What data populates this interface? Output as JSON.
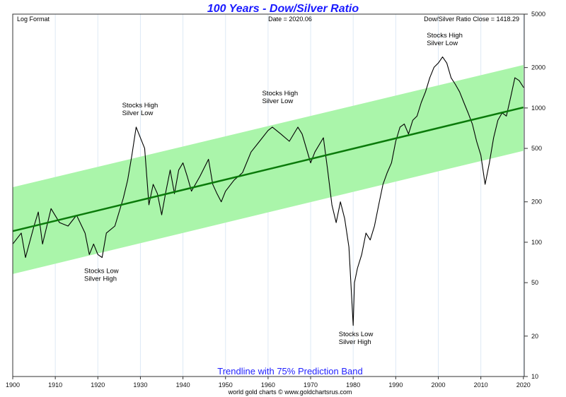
{
  "chart_data": {
    "type": "line",
    "title": "100 Years - Dow/Silver Ratio",
    "top_left_label": "Log Format",
    "date_label": "Date = 2020.06",
    "close_label": "Dow/Silver Ratio Close = 1418.29",
    "band_label": "Trendline with 75% Prediction Band",
    "footer": "world gold charts © www.goldchartsrus.com",
    "y_scale": "log",
    "xlim": [
      1900,
      2020.2
    ],
    "ylim": [
      10,
      5000
    ],
    "x_ticks": [
      1900,
      1910,
      1920,
      1930,
      1940,
      1950,
      1960,
      1970,
      1980,
      1990,
      2000,
      2010,
      2020
    ],
    "y_ticks": [
      5000,
      2000,
      1000,
      500,
      200,
      100,
      50,
      20,
      10
    ],
    "grid": "vertical",
    "colors": {
      "series": "#000000",
      "trend": "#0a7a0a",
      "band": "#aaf5aa",
      "title": "#1a1aff",
      "grid": "#dde9f5"
    },
    "trendline": {
      "x": [
        1900,
        2020
      ],
      "y": [
        121,
        1010
      ]
    },
    "band_upper": {
      "x": [
        1900,
        2020
      ],
      "y": [
        257,
        2090
      ]
    },
    "band_lower": {
      "x": [
        1900,
        2020
      ],
      "y": [
        58,
        480
      ]
    },
    "series": [
      {
        "name": "Dow/Silver Ratio",
        "x": [
          1900,
          1902,
          1903,
          1905,
          1906,
          1907,
          1909,
          1911,
          1913,
          1915,
          1917,
          1918,
          1919,
          1920,
          1921,
          1922,
          1924,
          1926,
          1927,
          1928,
          1929,
          1930,
          1931,
          1932,
          1933,
          1934,
          1935,
          1936,
          1937,
          1938,
          1939,
          1940,
          1941,
          1942,
          1944,
          1946,
          1947,
          1948,
          1949,
          1950,
          1952,
          1954,
          1956,
          1958,
          1960,
          1961,
          1963,
          1965,
          1967,
          1968,
          1970,
          1971,
          1973,
          1974,
          1975,
          1976,
          1977,
          1978,
          1979,
          1980,
          1980.3,
          1981,
          1982,
          1983,
          1984,
          1985,
          1986,
          1987,
          1988,
          1989,
          1990,
          1991,
          1992,
          1993,
          1994,
          1995,
          1996,
          1997,
          1998,
          1999,
          2000,
          2001,
          2002,
          2003,
          2004,
          2005,
          2006,
          2007,
          2008,
          2009,
          2010,
          2011,
          2012,
          2013,
          2014,
          2015,
          2016,
          2017,
          2018,
          2019,
          2020.06
        ],
        "y": [
          97,
          117,
          77,
          132,
          168,
          97,
          178,
          140,
          132,
          159,
          117,
          81,
          97,
          81,
          77,
          117,
          132,
          214,
          290,
          445,
          720,
          600,
          500,
          190,
          270,
          230,
          160,
          240,
          345,
          230,
          345,
          390,
          310,
          240,
          310,
          415,
          270,
          230,
          200,
          240,
          290,
          330,
          470,
          565,
          680,
          720,
          640,
          565,
          720,
          640,
          390,
          470,
          600,
          345,
          190,
          140,
          200,
          150,
          92,
          24,
          50,
          64,
          81,
          117,
          104,
          132,
          190,
          270,
          330,
          390,
          565,
          720,
          760,
          640,
          810,
          870,
          1100,
          1320,
          1680,
          2010,
          2160,
          2400,
          2160,
          1680,
          1500,
          1320,
          1100,
          920,
          760,
          565,
          445,
          270,
          390,
          600,
          810,
          920,
          870,
          1200,
          1680,
          1600,
          1418.29
        ]
      }
    ],
    "annotations": [
      {
        "lines": [
          "Stocks High",
          "Silver Low"
        ],
        "x": 1925.7,
        "y": 1010
      },
      {
        "lines": [
          "Stocks High",
          "Silver Low"
        ],
        "x": 1958.6,
        "y": 1245
      },
      {
        "lines": [
          "Stocks High",
          "Silver Low"
        ],
        "x": 1997.3,
        "y": 3360
      },
      {
        "lines": [
          "Stocks Low",
          "Silver High"
        ],
        "x": 1916.8,
        "y": 59
      },
      {
        "lines": [
          "Stocks Low",
          "Silver High"
        ],
        "x": 1976.6,
        "y": 20
      }
    ]
  }
}
